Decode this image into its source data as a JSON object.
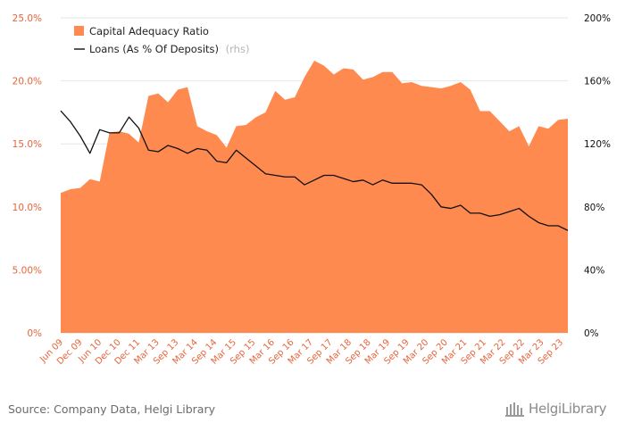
{
  "chart_data": {
    "type": "area",
    "title": "",
    "legend_placement": "top-left",
    "colors": {
      "area": "#ff8a50",
      "line": "#111111",
      "left_axis_text": "#e8643a",
      "right_axis_text": "#111111"
    },
    "x_tick_labels": [
      "Jun 09",
      "Dec 09",
      "Jun 10",
      "Dec 10",
      "Dec 11",
      "Mar 13",
      "Sep 13",
      "Mar 14",
      "Sep 14",
      "Mar 15",
      "Sep 15",
      "Mar 16",
      "Sep 16",
      "Mar 17",
      "Sep 17",
      "Mar 18",
      "Sep 18",
      "Mar 19",
      "Sep 19",
      "Mar 20",
      "Sep 20",
      "Mar 21",
      "Sep 21",
      "Mar 22",
      "Sep 22",
      "Mar 23",
      "Sep 23"
    ],
    "y_left": {
      "ticks": [
        "0%",
        "5.00%",
        "10.0%",
        "15.0%",
        "20.0%",
        "25.0%"
      ],
      "range": [
        0,
        25
      ]
    },
    "y_right": {
      "ticks": [
        "0%",
        "40%",
        "80%",
        "120%",
        "160%",
        "200%"
      ],
      "range": [
        0,
        200
      ]
    },
    "series": [
      {
        "name": "Capital Adequacy Ratio",
        "axis": "left",
        "kind": "area",
        "values": [
          11.1,
          11.4,
          11.5,
          12.2,
          12.0,
          15.9,
          16.0,
          15.8,
          15.1,
          18.8,
          19.0,
          18.3,
          19.3,
          19.5,
          16.4,
          16.0,
          15.7,
          14.7,
          16.4,
          16.5,
          17.1,
          17.5,
          19.2,
          18.5,
          18.7,
          20.3,
          21.6,
          21.2,
          20.5,
          21.0,
          20.9,
          20.1,
          20.3,
          20.7,
          20.7,
          19.8,
          19.9,
          19.6,
          19.5,
          19.4,
          19.6,
          19.9,
          19.3,
          17.6,
          17.6,
          16.8,
          16.0,
          16.4,
          14.8,
          16.4,
          16.2,
          16.9,
          17.0
        ]
      },
      {
        "name": "Loans (As % Of Deposits)",
        "name_suffix": "(rhs)",
        "axis": "right",
        "kind": "line",
        "values": [
          141,
          134,
          125,
          114,
          129,
          127,
          127,
          137,
          130,
          116,
          115,
          119,
          117,
          114,
          117,
          116,
          109,
          108,
          116,
          111,
          106,
          101,
          100,
          99,
          99,
          94,
          97,
          100,
          100,
          98,
          96,
          97,
          94,
          97,
          95,
          95,
          95,
          94,
          88,
          80,
          79,
          81,
          76,
          76,
          74,
          75,
          77,
          79,
          74,
          70,
          68,
          68,
          65
        ]
      }
    ]
  },
  "footer": {
    "source": "Source: Company Data, Helgi Library",
    "logo_text": "HelgiLibrary"
  }
}
